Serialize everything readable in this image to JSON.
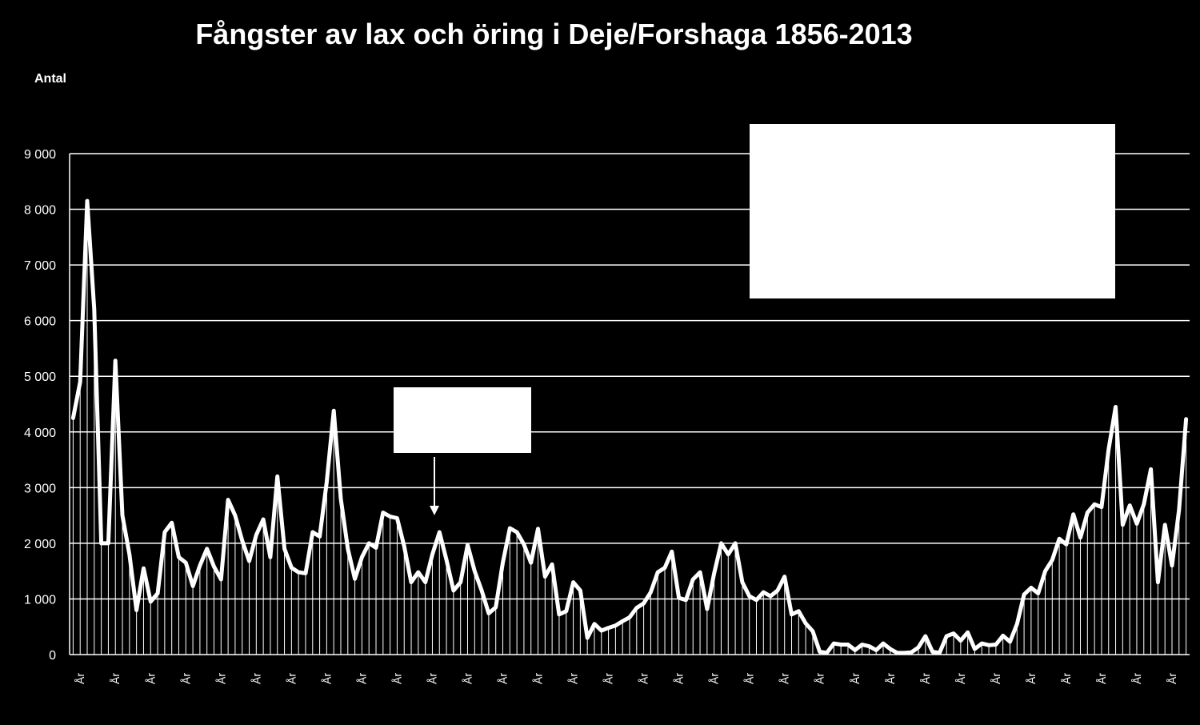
{
  "chart_data": {
    "type": "line",
    "title": "Fångster av lax och öring i Deje/Forshaga 1856-2013",
    "ylabel": "Antal",
    "xlabel": "",
    "x_tick_label": "År",
    "x_range": [
      1856,
      2013
    ],
    "ylim": [
      0,
      9000
    ],
    "y_ticks": [
      "0",
      "1 000",
      "2 000",
      "3 000",
      "4 000",
      "5 000",
      "6 000",
      "7 000",
      "8 000",
      "9 000"
    ],
    "grid": true,
    "series": [
      {
        "values": [
          4250,
          4900,
          8150,
          6200,
          2000,
          2000,
          5280,
          2500,
          1800,
          800,
          1550,
          950,
          1100,
          2200,
          2370,
          1750,
          1650,
          1230,
          1600,
          1900,
          1580,
          1350,
          2780,
          2500,
          2050,
          1680,
          2150,
          2430,
          1750,
          3200,
          1900,
          1560,
          1480,
          1460,
          2200,
          2120,
          3100,
          4380,
          2800,
          1900,
          1360,
          1750,
          2000,
          1920,
          2550,
          2480,
          2450,
          1950,
          1300,
          1480,
          1300,
          1800,
          2200,
          1700,
          1150,
          1300,
          1970,
          1500,
          1150,
          740,
          850,
          1650,
          2270,
          2200,
          1980,
          1650,
          2260,
          1400,
          1620,
          720,
          780,
          1300,
          1150,
          300,
          550,
          430,
          480,
          520,
          600,
          670,
          840,
          920,
          1120,
          1480,
          1560,
          1850,
          1020,
          980,
          1350,
          1480,
          820,
          1460,
          2000,
          1800,
          2000,
          1300,
          1050,
          980,
          1120,
          1050,
          1150,
          1400,
          720,
          780,
          560,
          420,
          50,
          30,
          200,
          180,
          180,
          80,
          180,
          150,
          80,
          200,
          100,
          30,
          30,
          40,
          130,
          330,
          50,
          30,
          330,
          380,
          250,
          400,
          100,
          200,
          170,
          180,
          340,
          230,
          550,
          1080,
          1200,
          1100,
          1500,
          1700,
          2080,
          1980,
          2520,
          2100,
          2550,
          2700,
          2650,
          3680,
          4450,
          2330,
          2680,
          2350,
          2700,
          3330,
          1300,
          2330,
          1600,
          2600,
          4230
        ]
      }
    ],
    "annotations": [
      {
        "type": "box",
        "text": ""
      },
      {
        "type": "callout-box",
        "text": ""
      }
    ],
    "colors": {
      "background": "#000000",
      "line": "#ffffff",
      "grid": "#ffffff",
      "bars": "#ffffff"
    }
  }
}
